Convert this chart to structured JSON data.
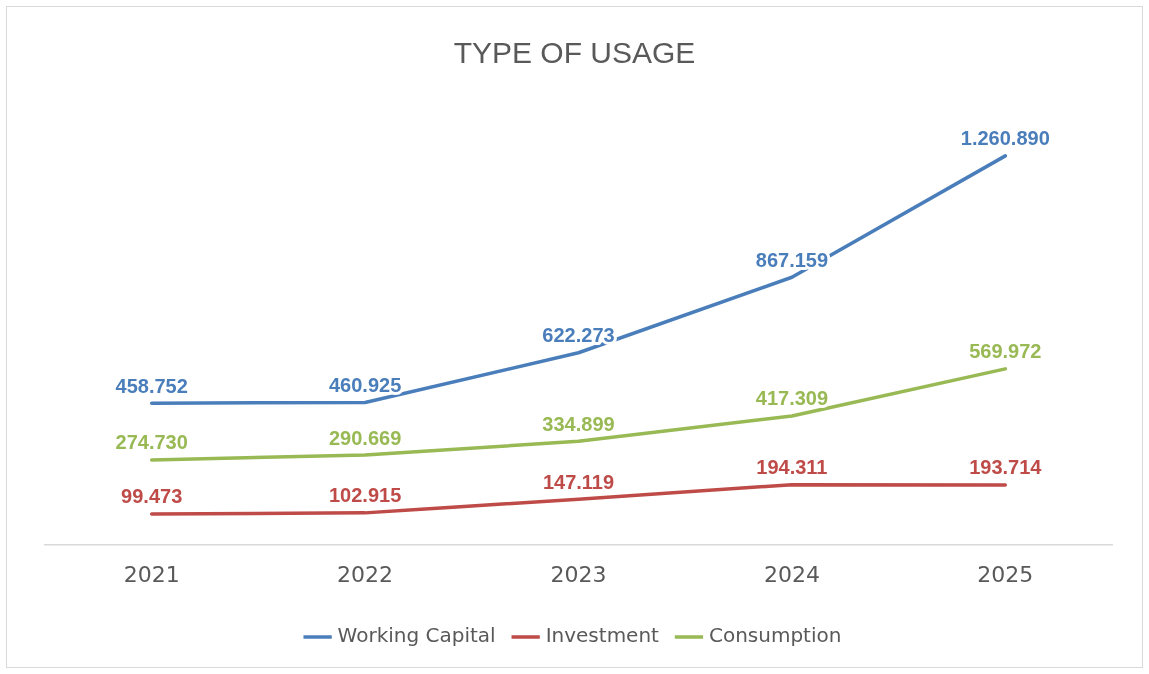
{
  "chart_data": {
    "type": "line",
    "title": "TYPE OF USAGE",
    "categories": [
      "2021",
      "2022",
      "2023",
      "2024",
      "2025"
    ],
    "series": [
      {
        "name": "Working Capital",
        "color": "#4a7ebb",
        "values": [
          458752,
          460925,
          622273,
          867159,
          1260890
        ],
        "value_labels": [
          "458.752",
          "460.925",
          "622.273",
          "867.159",
          "1.260.890"
        ]
      },
      {
        "name": "Investment",
        "color": "#be4b48",
        "values": [
          99473,
          102915,
          147119,
          194311,
          193714
        ],
        "value_labels": [
          "99.473",
          "102.915",
          "147.119",
          "194.311",
          "193.714"
        ]
      },
      {
        "name": "Consumption",
        "color": "#98b954",
        "values": [
          274730,
          290669,
          334899,
          417309,
          569972
        ],
        "value_labels": [
          "274.730",
          "290.669",
          "334.899",
          "417.309",
          "569.972"
        ]
      }
    ],
    "legend": "bottom",
    "grid": false,
    "marker": "none",
    "line_style": "solid"
  }
}
